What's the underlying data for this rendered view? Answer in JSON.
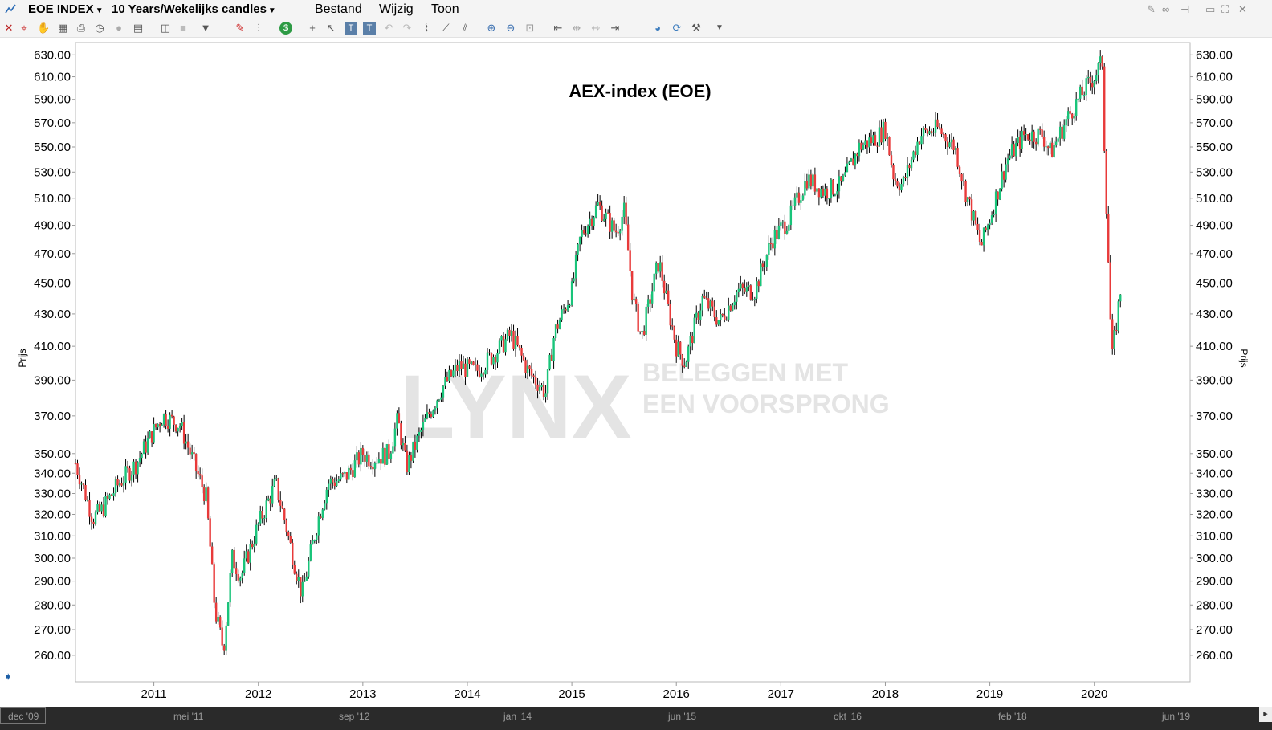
{
  "window": {
    "symbol": "EOE INDEX",
    "period": "10 Years/Wekelijks candles",
    "menus": [
      "Bestand",
      "Wijzig",
      "Toon"
    ]
  },
  "toolbar": {
    "icons": [
      "close-icon",
      "crosshair-icon",
      "hand-icon",
      "grid-icon",
      "print-icon",
      "clock-icon",
      "circle-icon",
      "table-icon",
      "chart-settings-icon",
      "blank-icon",
      "triangle-down-icon",
      "pencil-icon",
      "bar-type-icon",
      "dollar-icon",
      "plus-icon",
      "cursor-icon",
      "text-icon",
      "text-box-icon",
      "undo-icon",
      "redo-icon",
      "indicator-icon",
      "trendline-icon",
      "fan-icon",
      "zoom-in-icon",
      "zoom-out-icon",
      "zoom-box-icon",
      "scroll-left-icon",
      "compress-icon",
      "expand-icon",
      "scroll-end-icon",
      "color-icon",
      "refresh-icon",
      "wrench-icon",
      "more-icon"
    ]
  },
  "chart_data": {
    "type": "candlestick",
    "title": "AEX-index (EOE)",
    "ylabel": "Prijs",
    "y_scale": "log",
    "ylim": [
      250,
      640
    ],
    "y_ticks": [
      "630.00",
      "610.00",
      "590.00",
      "570.00",
      "550.00",
      "530.00",
      "510.00",
      "490.00",
      "470.00",
      "450.00",
      "430.00",
      "410.00",
      "390.00",
      "370.00",
      "350.00",
      "340.00",
      "330.00",
      "320.00",
      "310.00",
      "300.00",
      "290.00",
      "280.00",
      "270.00",
      "260.00"
    ],
    "x_ticks": [
      "2011",
      "2012",
      "2013",
      "2014",
      "2015",
      "2016",
      "2017",
      "2018",
      "2019",
      "2020"
    ],
    "x_range": [
      "2010-04",
      "2020-12"
    ],
    "watermark": [
      "LYNX",
      "BELEGGEN MET",
      "EEN VOORSPRONG"
    ],
    "up_color": "#19c47a",
    "down_color": "#e83a3a",
    "wick_color": "#000000",
    "series": [
      {
        "date": "2010-04",
        "close": 345
      },
      {
        "date": "2010-06",
        "close": 318
      },
      {
        "date": "2010-07",
        "close": 322
      },
      {
        "date": "2010-09",
        "close": 335
      },
      {
        "date": "2010-11",
        "close": 345
      },
      {
        "date": "2011-01",
        "close": 362
      },
      {
        "date": "2011-02",
        "close": 370
      },
      {
        "date": "2011-04",
        "close": 365
      },
      {
        "date": "2011-06",
        "close": 340
      },
      {
        "date": "2011-07",
        "close": 328
      },
      {
        "date": "2011-08",
        "close": 278
      },
      {
        "date": "2011-09",
        "close": 262
      },
      {
        "date": "2011-10",
        "close": 300
      },
      {
        "date": "2011-11",
        "close": 292
      },
      {
        "date": "2012-01",
        "close": 315
      },
      {
        "date": "2012-03",
        "close": 335
      },
      {
        "date": "2012-05",
        "close": 300
      },
      {
        "date": "2012-06",
        "close": 284
      },
      {
        "date": "2012-08",
        "close": 320
      },
      {
        "date": "2012-09",
        "close": 335
      },
      {
        "date": "2012-11",
        "close": 338
      },
      {
        "date": "2013-01",
        "close": 350
      },
      {
        "date": "2013-02",
        "close": 347
      },
      {
        "date": "2013-04",
        "close": 350
      },
      {
        "date": "2013-05",
        "close": 368
      },
      {
        "date": "2013-06",
        "close": 343
      },
      {
        "date": "2013-08",
        "close": 365
      },
      {
        "date": "2013-10",
        "close": 385
      },
      {
        "date": "2013-12",
        "close": 398
      },
      {
        "date": "2014-02",
        "close": 395
      },
      {
        "date": "2014-04",
        "close": 405
      },
      {
        "date": "2014-06",
        "close": 417
      },
      {
        "date": "2014-08",
        "close": 395
      },
      {
        "date": "2014-10",
        "close": 383
      },
      {
        "date": "2014-11",
        "close": 418
      },
      {
        "date": "2015-01",
        "close": 445
      },
      {
        "date": "2015-02",
        "close": 482
      },
      {
        "date": "2015-04",
        "close": 505
      },
      {
        "date": "2015-06",
        "close": 485
      },
      {
        "date": "2015-07",
        "close": 500
      },
      {
        "date": "2015-08",
        "close": 440
      },
      {
        "date": "2015-09",
        "close": 415
      },
      {
        "date": "2015-11",
        "close": 465
      },
      {
        "date": "2015-12",
        "close": 435
      },
      {
        "date": "2016-01",
        "close": 410
      },
      {
        "date": "2016-02",
        "close": 400
      },
      {
        "date": "2016-04",
        "close": 440
      },
      {
        "date": "2016-06",
        "close": 425
      },
      {
        "date": "2016-08",
        "close": 445
      },
      {
        "date": "2016-10",
        "close": 445
      },
      {
        "date": "2016-12",
        "close": 480
      },
      {
        "date": "2017-02",
        "close": 495
      },
      {
        "date": "2017-04",
        "close": 525
      },
      {
        "date": "2017-06",
        "close": 515
      },
      {
        "date": "2017-08",
        "close": 520
      },
      {
        "date": "2017-10",
        "close": 550
      },
      {
        "date": "2017-12",
        "close": 558
      },
      {
        "date": "2018-01",
        "close": 565
      },
      {
        "date": "2018-02",
        "close": 525
      },
      {
        "date": "2018-03",
        "close": 520
      },
      {
        "date": "2018-05",
        "close": 560
      },
      {
        "date": "2018-07",
        "close": 565
      },
      {
        "date": "2018-09",
        "close": 550
      },
      {
        "date": "2018-10",
        "close": 520
      },
      {
        "date": "2018-12",
        "close": 475
      },
      {
        "date": "2019-01",
        "close": 495
      },
      {
        "date": "2019-03",
        "close": 540
      },
      {
        "date": "2019-05",
        "close": 560
      },
      {
        "date": "2019-07",
        "close": 560
      },
      {
        "date": "2019-08",
        "close": 545
      },
      {
        "date": "2019-10",
        "close": 575
      },
      {
        "date": "2019-12",
        "close": 600
      },
      {
        "date": "2020-01",
        "close": 610
      },
      {
        "date": "2020-02",
        "close": 625
      },
      {
        "date": "2020-02",
        "close": 540
      },
      {
        "date": "2020-03",
        "close": 400
      },
      {
        "date": "2020-04",
        "close": 445
      }
    ]
  },
  "timeline": {
    "labels": [
      "dec '09",
      "mei '11",
      "sep '12",
      "jan '14",
      "jun '15",
      "okt '16",
      "feb '18",
      "jun '19"
    ]
  }
}
